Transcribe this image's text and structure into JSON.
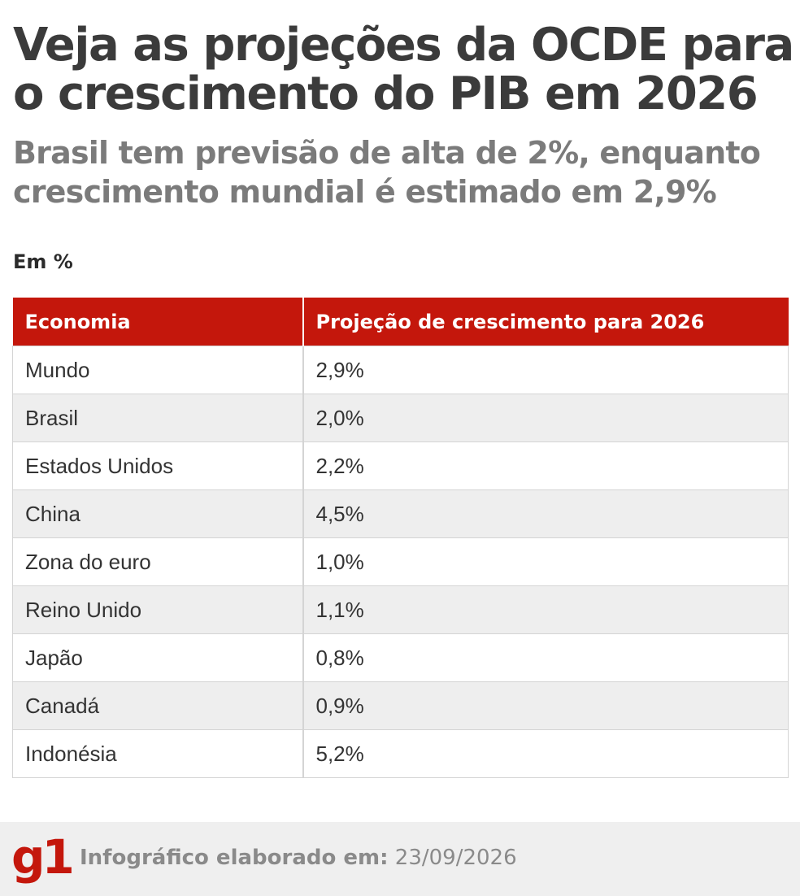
{
  "title": "Veja as projeções da OCDE para o crescimento do PIB em 2026",
  "subtitle": "Brasil tem previsão de alta de 2%, enquanto crescimento mundial é estimado em 2,9%",
  "unit": "Em %",
  "colors": {
    "header_bg": "#c4170c",
    "brand": "#c4170c",
    "stripe": "#eeeeee"
  },
  "chart_data": {
    "type": "table",
    "columns": [
      "Economia",
      "Projeção de crescimento para 2026"
    ],
    "rows": [
      [
        "Mundo",
        "2,9%"
      ],
      [
        "Brasil",
        "2,0%"
      ],
      [
        "Estados Unidos",
        "2,2%"
      ],
      [
        "China",
        "4,5%"
      ],
      [
        "Zona do euro",
        "1,0%"
      ],
      [
        "Reino Unido",
        "1,1%"
      ],
      [
        "Japão",
        "0,8%"
      ],
      [
        "Canadá",
        "0,9%"
      ],
      [
        "Indonésia",
        "5,2%"
      ]
    ]
  },
  "footer": {
    "logo": "g1",
    "credit_label": "Infográfico elaborado em:",
    "date": "23/09/2026"
  }
}
